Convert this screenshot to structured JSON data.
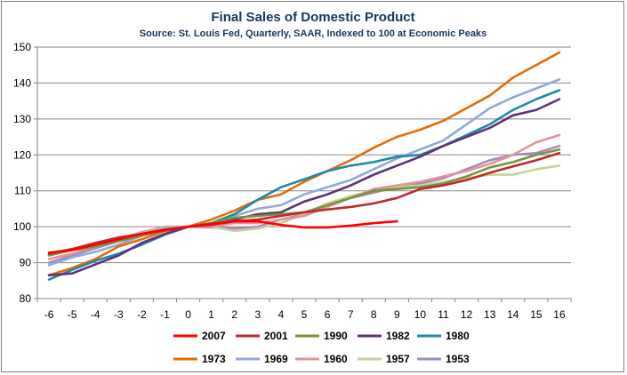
{
  "chart_data": {
    "type": "line",
    "title": "Final Sales of Domestic Product",
    "subtitle": "Source: St. Louis Fed, Quarterly, SAAR, Indexed to 100 at Economic Peaks",
    "xlabel": "",
    "ylabel": "",
    "xlim": [
      -6,
      16
    ],
    "ylim": [
      80,
      150
    ],
    "x": [
      -6,
      -5,
      -4,
      -3,
      -2,
      -1,
      0,
      1,
      2,
      3,
      4,
      5,
      6,
      7,
      8,
      9,
      10,
      11,
      12,
      13,
      14,
      15,
      16
    ],
    "yticks": [
      80,
      90,
      100,
      110,
      120,
      130,
      140,
      150
    ],
    "grid": "horizontal",
    "legend_position": "bottom",
    "series": [
      {
        "name": "2007",
        "color": "#ff0000",
        "values": [
          92.8,
          93.5,
          95,
          96.5,
          98,
          99.2,
          100,
          100.8,
          101.5,
          101.5,
          100.5,
          99.8,
          99.8,
          100.3,
          101,
          101.5,
          null,
          null,
          null,
          null,
          null,
          null,
          null
        ]
      },
      {
        "name": "2001",
        "color": "#c0282d",
        "values": [
          92.5,
          93.8,
          95.5,
          97,
          98,
          99,
          100,
          100.5,
          101.5,
          102,
          103,
          104,
          104.8,
          105.5,
          106.5,
          108,
          110.5,
          111.5,
          113,
          115,
          116.8,
          118.5,
          120.5
        ]
      },
      {
        "name": "1990",
        "color": "#77933c",
        "values": [
          92,
          93.5,
          94.5,
          96,
          97.5,
          99,
          100,
          101,
          102.5,
          103,
          103.5,
          104,
          106,
          108,
          110,
          110.5,
          111,
          112,
          114,
          116.5,
          118,
          120,
          121.5
        ]
      },
      {
        "name": "1982",
        "color": "#60307a",
        "values": [
          86.5,
          87,
          89.5,
          92,
          95.5,
          98,
          100,
          101,
          102,
          103.5,
          104,
          107,
          109,
          111.5,
          114.5,
          117,
          119.5,
          122.5,
          125,
          127.5,
          131,
          132.5,
          135.5
        ]
      },
      {
        "name": "1980",
        "color": "#1d8ba6",
        "values": [
          85.3,
          88,
          90.5,
          92.5,
          95,
          97.8,
          100,
          101,
          103.5,
          107.5,
          111,
          113.2,
          115.5,
          117,
          118,
          119.5,
          120,
          122.5,
          125.5,
          128.5,
          132.5,
          135.5,
          138
        ]
      },
      {
        "name": "1973",
        "color": "#e46c0a",
        "values": [
          86.5,
          88.5,
          91,
          94.5,
          96.5,
          98.8,
          100,
          102,
          104.5,
          107.5,
          109,
          112.5,
          115.5,
          118.5,
          122,
          125,
          127,
          129.5,
          133,
          136.5,
          141.5,
          145,
          148.5
        ]
      },
      {
        "name": "1969",
        "color": "#8eaadb",
        "values": [
          89.3,
          91.5,
          93,
          95,
          97.5,
          99.5,
          100,
          101,
          103,
          105,
          106,
          109,
          111,
          113,
          116,
          119,
          121.5,
          124,
          128.5,
          133,
          136,
          138.5,
          141
        ]
      },
      {
        "name": "1960",
        "color": "#e6929a",
        "values": [
          91,
          92.5,
          94.5,
          96.5,
          98.5,
          99.5,
          100,
          100,
          101,
          101,
          102,
          103,
          105.5,
          108,
          110.5,
          111.5,
          112.5,
          114,
          115.5,
          117.5,
          120,
          123.5,
          125.5
        ]
      },
      {
        "name": "1957",
        "color": "#c3d69b",
        "values": [
          92,
          93.5,
          95,
          96.5,
          98.5,
          99.8,
          100,
          100,
          98.8,
          99.5,
          101,
          103.5,
          106.5,
          108.5,
          110,
          111,
          111.5,
          112.5,
          113.5,
          114.5,
          114.5,
          116,
          117
        ]
      },
      {
        "name": "1953",
        "color": "#a18bbf",
        "values": [
          90,
          92,
          94,
          96,
          98.5,
          100,
          100,
          99.8,
          99.5,
          100,
          102,
          103.5,
          106,
          108,
          109.5,
          111,
          112,
          113.5,
          116,
          118.5,
          120,
          120.5,
          122.5
        ]
      }
    ]
  }
}
